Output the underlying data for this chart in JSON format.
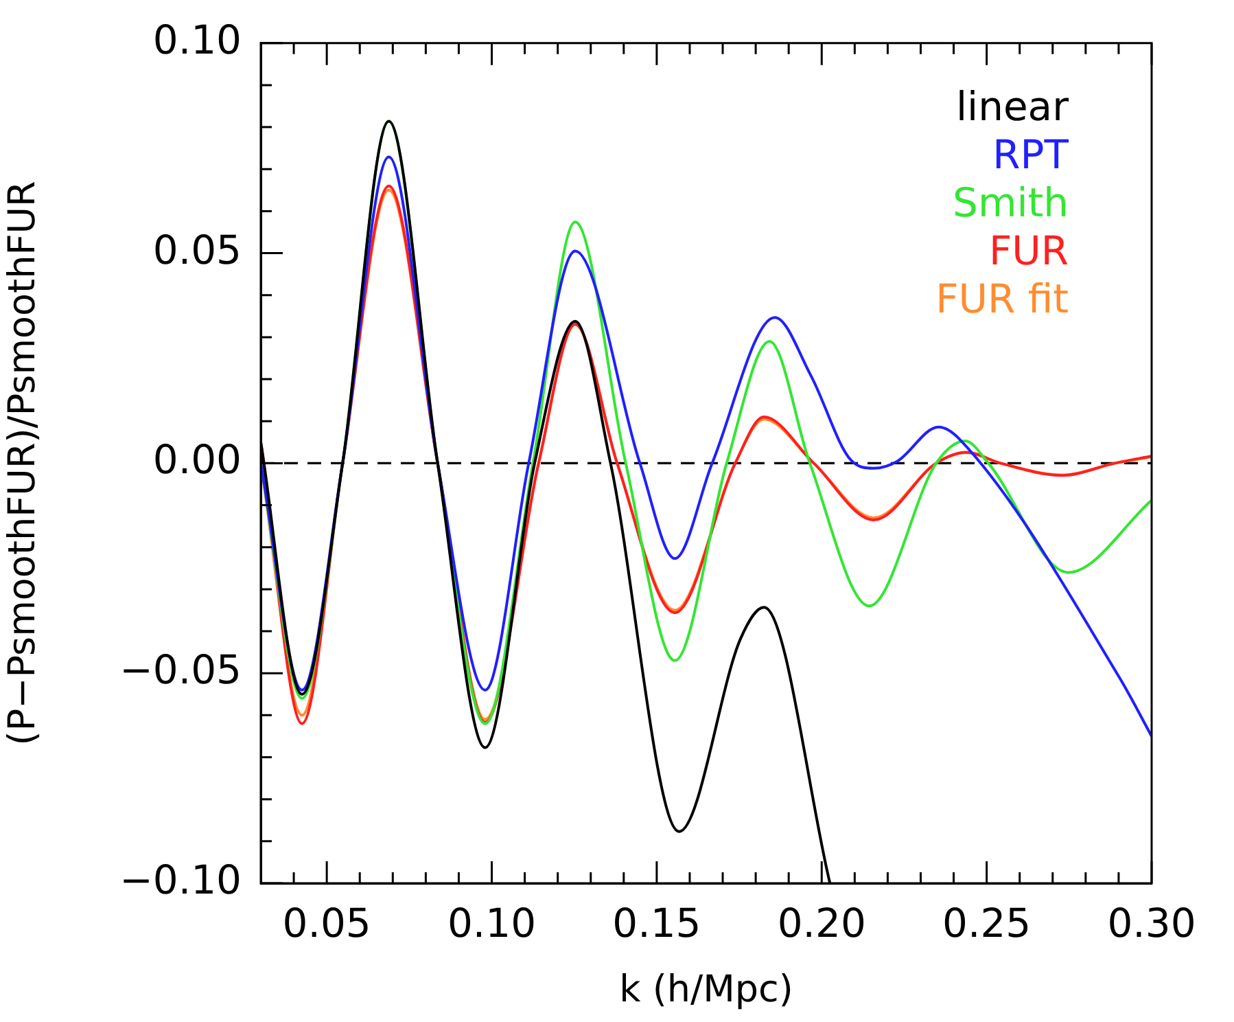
{
  "chart_data": {
    "type": "line",
    "xlabel": "k (h/Mpc)",
    "ylabel": "(P−PsmoothFUR)/PsmoothFUR",
    "xlim": [
      0.03,
      0.3
    ],
    "xticks": [
      {
        "value": 0.04,
        "label": null
      },
      0.05,
      {
        "value": 0.06,
        "label": null
      },
      {
        "value": 0.07,
        "label": null
      },
      {
        "value": 0.08,
        "label": null
      },
      {
        "value": 0.09,
        "label": null
      },
      {
        "value": 0.1,
        "label": "0.10"
      },
      {
        "value": 0.11,
        "label": null
      },
      {
        "value": 0.12,
        "label": null
      },
      {
        "value": 0.13,
        "label": null
      },
      {
        "value": 0.14,
        "label": null
      },
      0.15,
      {
        "value": 0.16,
        "label": null
      },
      {
        "value": 0.17,
        "label": null
      },
      {
        "value": 0.18,
        "label": null
      },
      {
        "value": 0.19,
        "label": null
      },
      {
        "value": 0.2,
        "label": "0.20"
      },
      {
        "value": 0.21,
        "label": null
      },
      {
        "value": 0.22,
        "label": null
      },
      {
        "value": 0.23,
        "label": null
      },
      {
        "value": 0.24,
        "label": null
      },
      0.25,
      {
        "value": 0.26,
        "label": null
      },
      {
        "value": 0.27,
        "label": null
      },
      {
        "value": 0.28,
        "label": null
      },
      {
        "value": 0.29,
        "label": null
      },
      {
        "value": 0.3,
        "label": "0.30"
      }
    ],
    "ylim": [
      -0.1,
      0.1
    ],
    "yticks": [
      {
        "value": -0.1,
        "label": "−0.10"
      },
      {
        "value": -0.09,
        "label": null
      },
      {
        "value": -0.08,
        "label": null
      },
      {
        "value": -0.07,
        "label": null
      },
      {
        "value": -0.06,
        "label": null
      },
      {
        "value": -0.05,
        "label": "−0.05"
      },
      {
        "value": -0.04,
        "label": null
      },
      {
        "value": -0.03,
        "label": null
      },
      {
        "value": -0.02,
        "label": null
      },
      {
        "value": -0.01,
        "label": null
      },
      {
        "value": 0,
        "label": "0.00"
      },
      {
        "value": 0.01,
        "label": null
      },
      {
        "value": 0.02,
        "label": null
      },
      {
        "value": 0.03,
        "label": null
      },
      {
        "value": 0.04,
        "label": null
      },
      {
        "value": 0.05,
        "label": "0.05"
      },
      {
        "value": 0.06,
        "label": null
      },
      {
        "value": 0.07,
        "label": null
      },
      {
        "value": 0.08,
        "label": null
      },
      {
        "value": 0.09,
        "label": null
      },
      {
        "value": 0.1,
        "label": "0.10"
      }
    ],
    "grid": false,
    "legend": "top right",
    "marker": "none",
    "line_style": "solid",
    "ref_lines": [
      {
        "axis": "y",
        "value": 0,
        "color": "#000000",
        "line_style": "dashed"
      }
    ],
    "series": [
      {
        "name": "linear",
        "color": "#000000",
        "x": [
          0.03,
          0.0425,
          0.0548,
          0.0688,
          0.0836,
          0.098,
          0.113,
          0.1253,
          0.136,
          0.1568,
          0.1755,
          0.1825,
          0.2025
        ],
        "values": [
          0.005,
          -0.055,
          0,
          0.0814,
          0,
          -0.0677,
          0,
          0.0338,
          0,
          -0.0877,
          -0.0416,
          -0.0343,
          -0.1
        ]
      },
      {
        "name": "RPT",
        "color": "#2020ff",
        "x": [
          0.03,
          0.0425,
          0.0548,
          0.0688,
          0.0836,
          0.098,
          0.1112,
          0.1253,
          0.1449,
          0.1555,
          0.1668,
          0.1858,
          0.1967,
          0.2089,
          0.2158,
          0.2228,
          0.2354,
          0.2418,
          0.2903,
          0.3
        ],
        "values": [
          0,
          -0.054,
          0,
          0.0729,
          0,
          -0.054,
          0,
          0.0505,
          0,
          -0.0227,
          0,
          0.0347,
          0.0209,
          0.0007,
          -0.0012,
          0.0004,
          0.0086,
          0.0057,
          -0.0511,
          -0.065
        ]
      },
      {
        "name": "Smith",
        "color": "#33e633",
        "x": [
          0.03,
          0.0425,
          0.0548,
          0.0688,
          0.0836,
          0.098,
          0.1125,
          0.1253,
          0.1406,
          0.1555,
          0.1712,
          0.1842,
          0.1964,
          0.2144,
          0.2347,
          0.2435,
          0.2505,
          0.2747,
          0.3
        ],
        "values": [
          0,
          -0.056,
          0,
          0.0814,
          0,
          -0.062,
          0,
          0.0574,
          0,
          -0.047,
          0,
          0.029,
          0,
          -0.034,
          0,
          0.0053,
          0,
          -0.026,
          -0.0088
        ]
      },
      {
        "name": "FUR",
        "color": "#ff2020",
        "x": [
          0.03,
          0.0425,
          0.0548,
          0.0688,
          0.0836,
          0.098,
          0.1142,
          0.1253,
          0.138,
          0.1555,
          0.1738,
          0.1825,
          0.1976,
          0.2158,
          0.2347,
          0.2439,
          0.2542,
          0.2729,
          0.2889,
          0.3
        ],
        "values": [
          0.005,
          -0.062,
          0,
          0.066,
          0,
          -0.0617,
          0,
          0.0331,
          0,
          -0.0356,
          0,
          0.011,
          0,
          -0.0135,
          0,
          0.0026,
          0,
          -0.0029,
          0,
          0.0017
        ]
      },
      {
        "name": "FUR fit",
        "color": "#ff8c30",
        "x": [
          0.03,
          0.0425,
          0.0548,
          0.0688,
          0.0836,
          0.098,
          0.1142,
          0.1253,
          0.138,
          0.1555,
          0.1738,
          0.1825,
          0.1976,
          0.2158,
          0.2347,
          0.2439,
          0.2542,
          0.2729,
          0.2889,
          0.3
        ],
        "values": [
          0,
          -0.06,
          0,
          0.065,
          0,
          -0.061,
          0,
          0.033,
          0,
          -0.035,
          0,
          0.0105,
          0,
          -0.013,
          0,
          0.0025,
          0,
          -0.0028,
          0,
          0.0015
        ]
      }
    ]
  }
}
